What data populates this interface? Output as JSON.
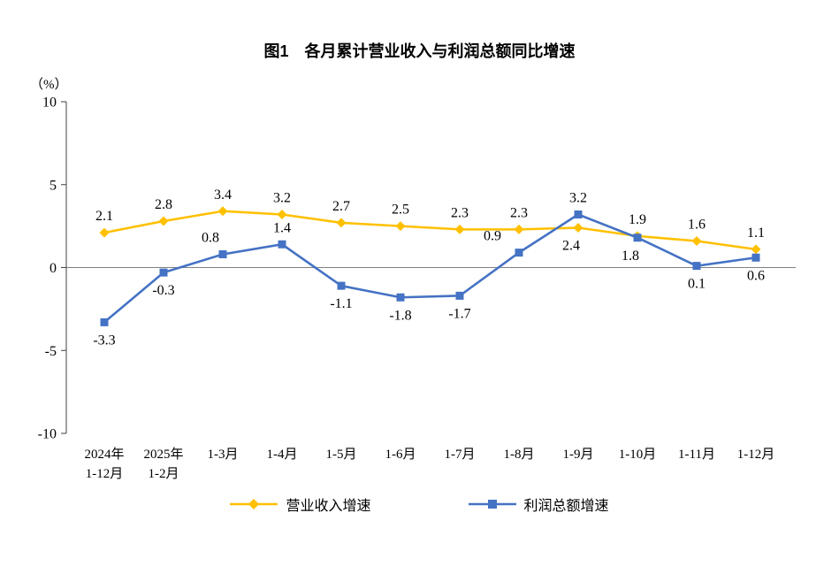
{
  "page": {
    "background": "#ffffff"
  },
  "chart_data": {
    "type": "line",
    "title": "图1　各月累计营业收入与利润总额同比增速",
    "unit_label": "（%）",
    "categories": [
      "2024年\n1-12月",
      "2025年\n1-2月",
      "1-3月",
      "1-4月",
      "1-5月",
      "1-6月",
      "1-7月",
      "1-8月",
      "1-9月",
      "1-10月",
      "1-11月",
      "1-12月"
    ],
    "y_ticks": [
      10,
      5,
      0,
      -5,
      -10
    ],
    "ylim": [
      -10,
      10
    ],
    "grid": false,
    "legend_position": "bottom",
    "axis_color": "#404040",
    "zero_line_color": "#808080",
    "series": [
      {
        "name": "营业收入增速",
        "color": "#FFC000",
        "marker": "diamond",
        "values": [
          2.1,
          2.8,
          3.4,
          3.2,
          2.7,
          2.5,
          2.3,
          2.3,
          2.4,
          1.9,
          1.6,
          1.1
        ],
        "label_pos": [
          "above",
          "above",
          "above",
          "above",
          "above",
          "above",
          "above",
          "above",
          "below",
          "above",
          "above",
          "above"
        ],
        "label_dx": [
          0,
          0,
          0,
          0,
          0,
          0,
          0,
          0,
          -8,
          0,
          0,
          0
        ]
      },
      {
        "name": "利润总额增速",
        "color": "#4472C4",
        "marker": "square",
        "values": [
          -3.3,
          -0.3,
          0.8,
          1.4,
          -1.1,
          -1.8,
          -1.7,
          0.9,
          3.2,
          1.8,
          0.1,
          0.6
        ],
        "label_pos": [
          "below",
          "below",
          "above",
          "above",
          "below",
          "below",
          "below",
          "above",
          "above",
          "below",
          "below",
          "below"
        ],
        "label_dx": [
          0,
          0,
          -14,
          0,
          0,
          0,
          0,
          -30,
          0,
          -8,
          0,
          0
        ]
      }
    ]
  }
}
